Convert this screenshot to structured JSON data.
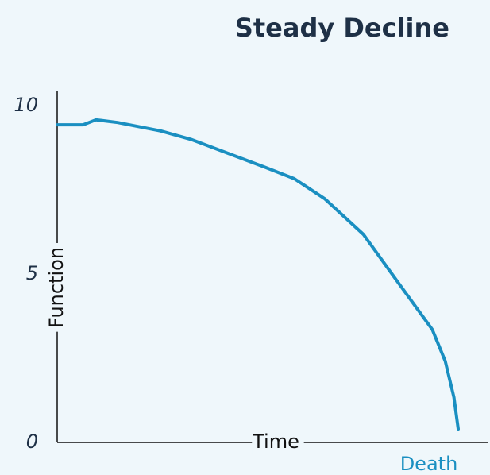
{
  "chart_data": {
    "type": "line",
    "title": "Steady Decline",
    "x_label": "Time",
    "y_label": "Function",
    "annotation": "Death",
    "x": [
      0,
      6,
      9,
      14,
      24,
      31,
      42,
      48,
      55,
      62,
      71,
      79,
      87,
      90,
      92,
      93
    ],
    "series": [
      {
        "name": null,
        "color": "#1a8fc1",
        "values": [
          9.43,
          9.43,
          9.58,
          9.5,
          9.25,
          9.0,
          8.47,
          8.18,
          7.83,
          7.24,
          6.18,
          4.76,
          3.35,
          2.41,
          1.34,
          0.4
        ]
      }
    ],
    "xlim": [
      0,
      100
    ],
    "ylim": [
      0,
      10
    ],
    "yticks": [
      0,
      5,
      10
    ]
  }
}
